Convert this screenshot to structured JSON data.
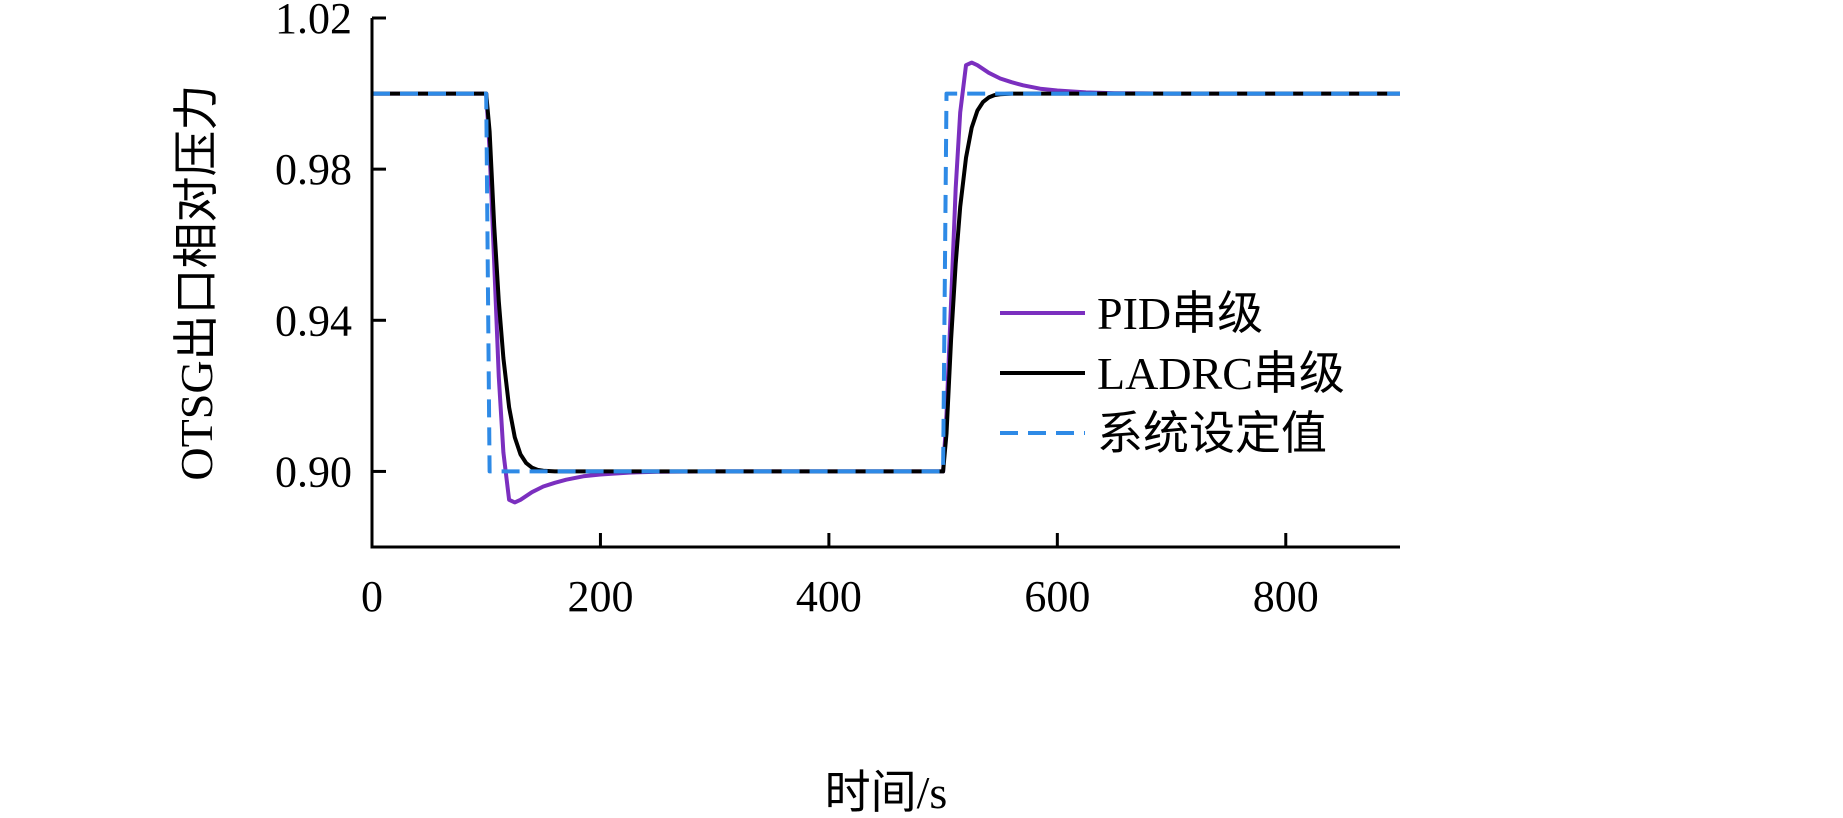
{
  "chart_data": {
    "type": "line",
    "xlabel": "时间/s",
    "ylabel": "OTSG出口相对压力",
    "xlim": [
      0,
      900
    ],
    "ylim": [
      0.88,
      1.02
    ],
    "xticks": [
      0,
      200,
      400,
      600,
      800
    ],
    "xtick_labels": [
      "0",
      "200",
      "400",
      "600",
      "800"
    ],
    "yticks": [
      0.9,
      0.94,
      0.98,
      1.02
    ],
    "ytick_labels": [
      "0.90",
      "0.94",
      "0.98",
      "1.02"
    ],
    "grid": false,
    "legend_position": "right",
    "series": [
      {
        "name": "PID串级",
        "color": "#7b2fbf",
        "style": "solid",
        "x": [
          0,
          100,
          103,
          107,
          111,
          115,
          120,
          125,
          130,
          140,
          150,
          160,
          170,
          185,
          200,
          225,
          250,
          300,
          400,
          500,
          503,
          507,
          511,
          515,
          520,
          525,
          530,
          540,
          550,
          560,
          570,
          585,
          600,
          625,
          650,
          700,
          800,
          900
        ],
        "y": [
          1.0,
          1.0,
          0.985,
          0.955,
          0.925,
          0.905,
          0.8925,
          0.8918,
          0.8925,
          0.8945,
          0.896,
          0.897,
          0.8978,
          0.8987,
          0.8992,
          0.8997,
          0.8999,
          0.9,
          0.9,
          0.9,
          0.915,
          0.945,
          0.975,
          0.995,
          1.0075,
          1.0082,
          1.0075,
          1.0055,
          1.004,
          1.003,
          1.0022,
          1.0013,
          1.0008,
          1.0003,
          1.0001,
          1.0,
          1.0,
          1.0
        ]
      },
      {
        "name": "LADRC串级",
        "color": "#000000",
        "style": "solid",
        "x": [
          0,
          100,
          103,
          107,
          111,
          115,
          120,
          125,
          130,
          135,
          140,
          145,
          150,
          160,
          170,
          180,
          200,
          300,
          400,
          500,
          503,
          507,
          511,
          515,
          520,
          525,
          530,
          535,
          540,
          545,
          550,
          560,
          570,
          580,
          600,
          700,
          800,
          900
        ],
        "y": [
          1.0,
          1.0,
          0.99,
          0.965,
          0.945,
          0.93,
          0.917,
          0.909,
          0.9045,
          0.9022,
          0.901,
          0.9004,
          0.9002,
          0.9,
          0.9,
          0.9,
          0.9,
          0.9,
          0.9,
          0.9,
          0.91,
          0.935,
          0.955,
          0.97,
          0.983,
          0.991,
          0.9955,
          0.9978,
          0.999,
          0.9996,
          0.9998,
          1.0,
          1.0,
          1.0,
          1.0,
          1.0,
          1.0,
          1.0
        ]
      },
      {
        "name": "系统设定值",
        "color": "#2e8ae6",
        "style": "dashed",
        "x": [
          0,
          100,
          103,
          500,
          503,
          900
        ],
        "y": [
          1.0,
          1.0,
          0.9,
          0.9,
          1.0,
          1.0
        ]
      }
    ]
  }
}
